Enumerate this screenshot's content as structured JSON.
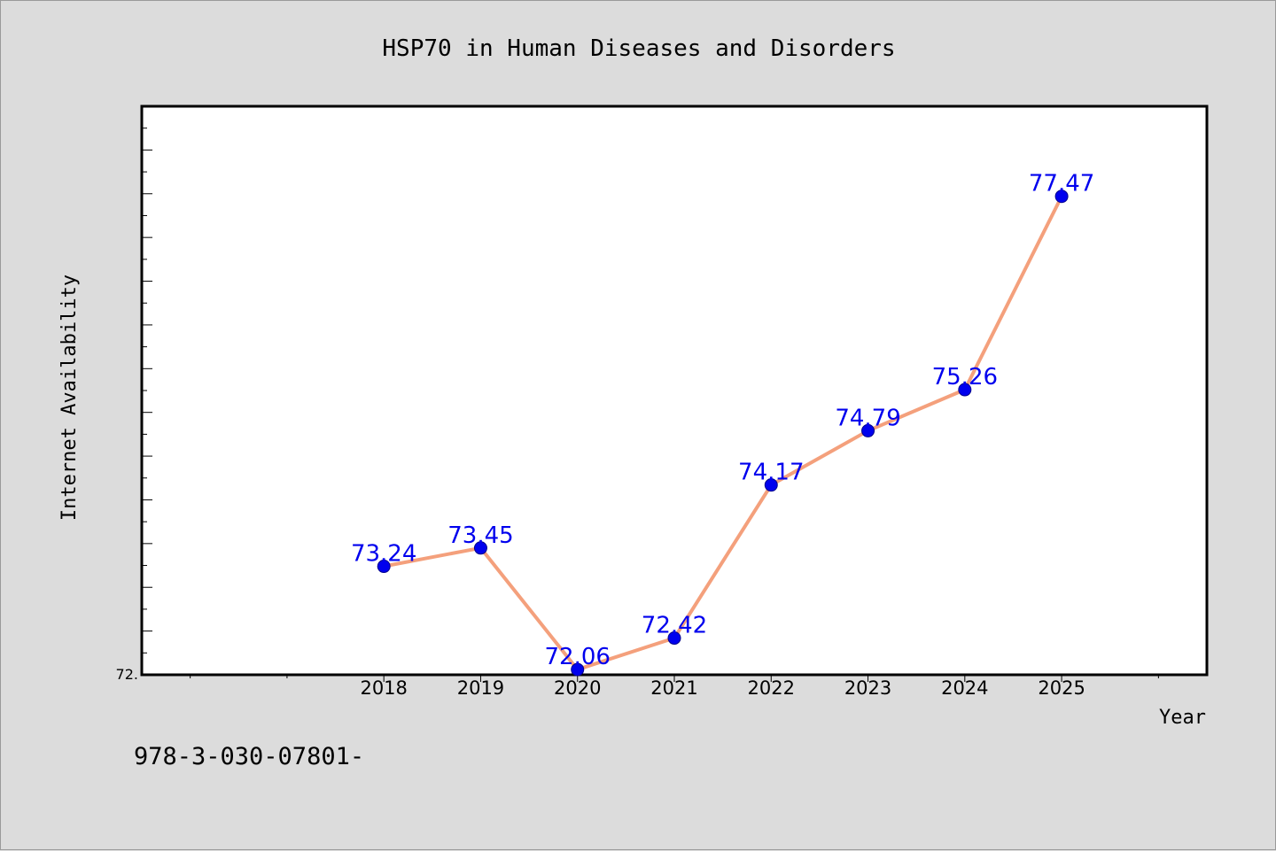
{
  "chart_data": {
    "type": "line",
    "title": "HSP70 in Human Diseases and Disorders",
    "xlabel": "Year",
    "ylabel": "Internet Availability",
    "x": [
      2018,
      2019,
      2020,
      2021,
      2022,
      2023,
      2024,
      2025
    ],
    "tick_labels": [
      "2018",
      "2019",
      "2020",
      "2021",
      "2022",
      "2023",
      "2024",
      "2025"
    ],
    "series": [
      {
        "values": [
          73.24,
          73.45,
          72.06,
          72.42,
          74.17,
          74.79,
          75.26,
          77.47
        ],
        "labels": [
          "73.24",
          "73.45",
          "72.06",
          "72.42",
          "74.17",
          "74.79",
          "75.26",
          "77.47"
        ]
      }
    ],
    "xlim": [
      2015.5,
      2026.5
    ],
    "ylim": [
      72.0,
      78.5
    ],
    "y_tick_label": "72.",
    "grid": false,
    "line_color": "#f4a07c",
    "marker_color": "#0000ee",
    "label_color": "#0000ee"
  },
  "footer": {
    "text": "978-3-030-07801-"
  }
}
